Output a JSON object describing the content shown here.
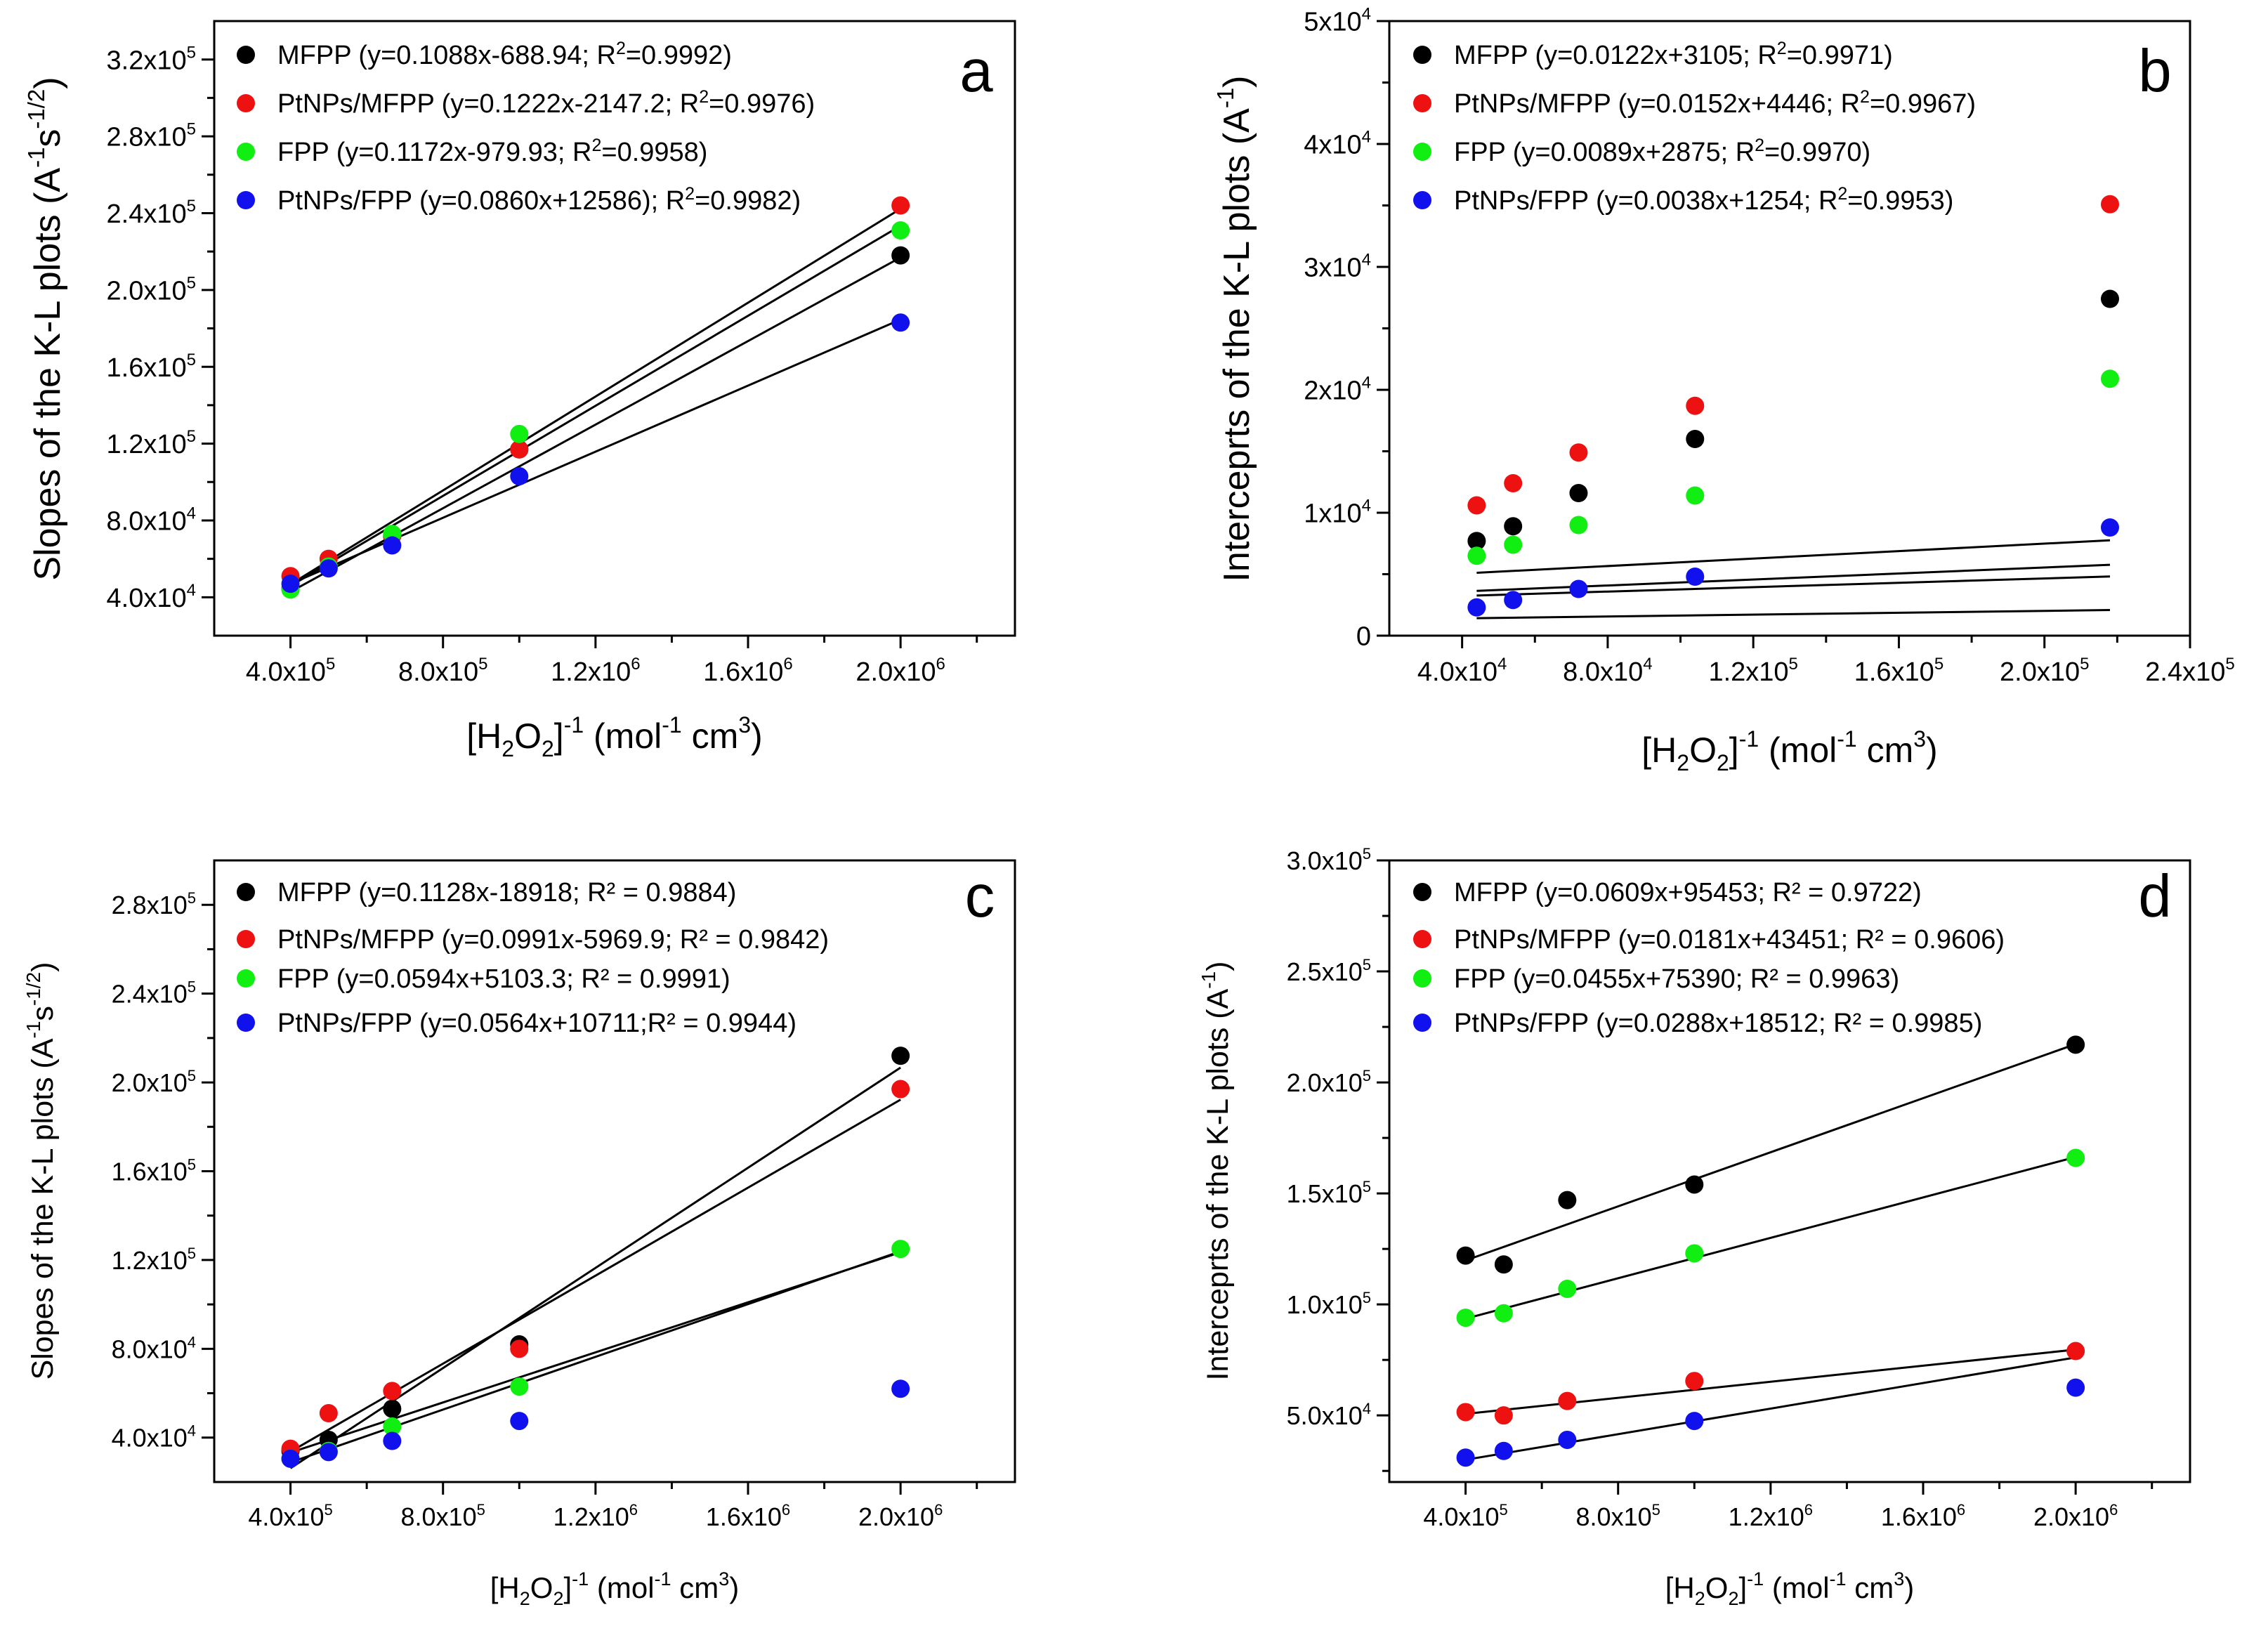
{
  "colors": {
    "MFPP": "#000000",
    "PtNPs/MFPP": "#ee1111",
    "FPP": "#11ee11",
    "PtNPs/FPP": "#1111ee",
    "axis": "#000000"
  },
  "chart_data": [
    {
      "type": "scatter",
      "panel": "a",
      "ylabel": "Slopes of the K-L plots (A^-1 s^-1/2)",
      "xlabel": "[H2O2]^-1 (mol^-1 cm^3)",
      "xlim": [
        200000,
        2300000
      ],
      "ylim": [
        20000,
        340000
      ],
      "xticks": [
        {
          "v": 400000,
          "m": "4.0",
          "e": "5"
        },
        {
          "v": 800000,
          "m": "8.0",
          "e": "5"
        },
        {
          "v": 1200000,
          "m": "1.2",
          "e": "6"
        },
        {
          "v": 1600000,
          "m": "1.6",
          "e": "6"
        },
        {
          "v": 2000000,
          "m": "2.0",
          "e": "6"
        }
      ],
      "yticks": [
        {
          "v": 40000,
          "m": "4.0",
          "e": "4"
        },
        {
          "v": 80000,
          "m": "8.0",
          "e": "4"
        },
        {
          "v": 120000,
          "m": "1.2",
          "e": "5"
        },
        {
          "v": 160000,
          "m": "1.6",
          "e": "5"
        },
        {
          "v": 200000,
          "m": "2.0",
          "e": "5"
        },
        {
          "v": 240000,
          "m": "2.4",
          "e": "5"
        },
        {
          "v": 280000,
          "m": "2.8",
          "e": "5"
        },
        {
          "v": 320000,
          "m": "3.2",
          "e": "5"
        }
      ],
      "series": [
        {
          "name": "MFPP",
          "legend": "MFPP (y=0.1088x-688.94; R2=0.9992)",
          "x": [
            400000,
            500000,
            666667,
            1000000,
            2000000
          ],
          "y": [
            44500,
            56000,
            72000,
            117000,
            218000
          ],
          "fit": {
            "slope": 0.1088,
            "intercept": -688.94
          }
        },
        {
          "name": "PtNPs/MFPP",
          "legend": "PtNPs/MFPP (y=0.1222x-2147.2; R2=0.9976)",
          "x": [
            400000,
            500000,
            666667,
            1000000,
            2000000
          ],
          "y": [
            51000,
            60000,
            72000,
            117000,
            244000
          ],
          "fit": {
            "slope": 0.1222,
            "intercept": -2147.2
          }
        },
        {
          "name": "FPP",
          "legend": "FPP (y=0.1172x-979.93; R2=0.9958)",
          "x": [
            400000,
            500000,
            666667,
            1000000,
            2000000
          ],
          "y": [
            44000,
            56000,
            73000,
            125000,
            231000
          ],
          "fit": {
            "slope": 0.1172,
            "intercept": -979.93
          }
        },
        {
          "name": "PtNPs/FPP",
          "legend": "PtNPs/FPP (y=0.0860x+12586); R2=0.9982)",
          "x": [
            400000,
            500000,
            666667,
            1000000,
            2000000
          ],
          "y": [
            47000,
            55000,
            67000,
            103000,
            183000
          ],
          "fit": {
            "slope": 0.086,
            "intercept": 12586
          }
        }
      ]
    },
    {
      "type": "scatter",
      "panel": "b",
      "ylabel": "Interceprts of the K-L plots (A^-1)",
      "xlabel": "[H2O2]^-1 (mol^-1 cm^3)",
      "xlim": [
        20000,
        240000
      ],
      "ylim": [
        0,
        50000
      ],
      "xticks": [
        {
          "v": 40000,
          "m": "4.0",
          "e": "4"
        },
        {
          "v": 80000,
          "m": "8.0",
          "e": "4"
        },
        {
          "v": 120000,
          "m": "1.2",
          "e": "5"
        },
        {
          "v": 160000,
          "m": "1.6",
          "e": "5"
        },
        {
          "v": 200000,
          "m": "2.0",
          "e": "5"
        },
        {
          "v": 240000,
          "m": "2.4",
          "e": "5"
        }
      ],
      "yticks": [
        {
          "v": 0,
          "m": "0",
          "e": ""
        },
        {
          "v": 10000,
          "m": "1",
          "e": "4"
        },
        {
          "v": 20000,
          "m": "2",
          "e": "4"
        },
        {
          "v": 30000,
          "m": "3",
          "e": "4"
        },
        {
          "v": 40000,
          "m": "4",
          "e": "4"
        },
        {
          "v": 50000,
          "m": "5",
          "e": "4"
        }
      ],
      "series": [
        {
          "name": "MFPP",
          "legend": "MFPP (y=0.0122x+3105; R2=0.9971)",
          "x": [
            44000,
            54000,
            72000,
            104000,
            218000
          ],
          "y": [
            7700,
            8900,
            11600,
            16000,
            27400
          ],
          "fit": {
            "slope": 0.0122,
            "intercept": 3105
          }
        },
        {
          "name": "PtNPs/MFPP",
          "legend": "PtNPs/MFPP (y=0.0152x+4446; R2=0.9967)",
          "x": [
            44000,
            54000,
            72000,
            104000,
            218000
          ],
          "y": [
            10600,
            12400,
            14900,
            18700,
            35100
          ],
          "fit": {
            "slope": 0.0152,
            "intercept": 4446
          }
        },
        {
          "name": "FPP",
          "legend": "FPP (y=0.0089x+2875; R2=0.9970)",
          "x": [
            44000,
            54000,
            72000,
            104000,
            218000
          ],
          "y": [
            6500,
            7400,
            9000,
            11400,
            20900
          ],
          "fit": {
            "slope": 0.0089,
            "intercept": 2875
          }
        },
        {
          "name": "PtNPs/FPP",
          "legend": "PtNPs/FPP (y=0.0038x+1254; R2=0.9953)",
          "x": [
            44000,
            54000,
            72000,
            104000,
            218000
          ],
          "y": [
            2300,
            2900,
            3800,
            4800,
            8800
          ],
          "fit": {
            "slope": 0.0038,
            "intercept": 1254
          }
        }
      ]
    },
    {
      "type": "scatter",
      "panel": "c",
      "ylabel": "Slopes of the K-L plots (A^-1 s^-1/2)",
      "xlabel": "[H2O2]^-1 (mol^-1 cm^3)",
      "xlim": [
        200000,
        2300000
      ],
      "ylim": [
        20000,
        300000
      ],
      "xticks": [
        {
          "v": 400000,
          "m": "4.0",
          "e": "5"
        },
        {
          "v": 800000,
          "m": "8.0",
          "e": "5"
        },
        {
          "v": 1200000,
          "m": "1.2",
          "e": "6"
        },
        {
          "v": 1600000,
          "m": "1.6",
          "e": "6"
        },
        {
          "v": 2000000,
          "m": "2.0",
          "e": "6"
        }
      ],
      "yticks": [
        {
          "v": 40000,
          "m": "4.0",
          "e": "4"
        },
        {
          "v": 80000,
          "m": "8.0",
          "e": "4"
        },
        {
          "v": 120000,
          "m": "1.2",
          "e": "5"
        },
        {
          "v": 160000,
          "m": "1.6",
          "e": "5"
        },
        {
          "v": 200000,
          "m": "2.0",
          "e": "5"
        },
        {
          "v": 240000,
          "m": "2.4",
          "e": "5"
        },
        {
          "v": 280000,
          "m": "2.8",
          "e": "5"
        }
      ],
      "series": [
        {
          "name": "MFPP",
          "legend": "MFPP (y=0.1128x-18918; R² = 0.9884)",
          "x": [
            400000,
            500000,
            666667,
            1000000,
            2000000
          ],
          "y": [
            34000,
            39000,
            53000,
            82000,
            212000
          ],
          "fit": {
            "slope": 0.1128,
            "intercept": -18918
          }
        },
        {
          "name": "PtNPs/MFPP",
          "legend": "PtNPs/MFPP (y=0.0991x-5969.9; R² = 0.9842)",
          "x": [
            400000,
            500000,
            666667,
            1000000,
            2000000
          ],
          "y": [
            35000,
            51000,
            61000,
            80000,
            197000
          ],
          "fit": {
            "slope": 0.0991,
            "intercept": -5969.9
          }
        },
        {
          "name": "FPP",
          "legend": "FPP (y=0.0594x+5103.3; R² = 0.9991)",
          "x": [
            400000,
            500000,
            666667,
            1000000,
            2000000
          ],
          "y": [
            30500,
            34000,
            45000,
            63000,
            125000
          ],
          "fit": {
            "slope": 0.0594,
            "intercept": 5103.3
          }
        },
        {
          "name": "PtNPs/FPP",
          "legend": "PtNPs/FPP (y=0.0564x+10711;R² = 0.9944)",
          "x": [
            400000,
            500000,
            666667,
            1000000,
            2000000
          ],
          "y": [
            30500,
            33500,
            38500,
            47500,
            62000
          ],
          "fit": {
            "slope": 0.0564,
            "intercept": 10711
          }
        }
      ]
    },
    {
      "type": "scatter",
      "panel": "d",
      "ylabel": "Interceprts of the K-L plots (A^-1)",
      "xlabel": "[H2O2]^-1 (mol^-1 cm^3)",
      "xlim": [
        200000,
        2300000
      ],
      "ylim": [
        20000,
        300000
      ],
      "xticks": [
        {
          "v": 400000,
          "m": "4.0",
          "e": "5"
        },
        {
          "v": 800000,
          "m": "8.0",
          "e": "5"
        },
        {
          "v": 1200000,
          "m": "1.2",
          "e": "6"
        },
        {
          "v": 1600000,
          "m": "1.6",
          "e": "6"
        },
        {
          "v": 2000000,
          "m": "2.0",
          "e": "6"
        }
      ],
      "yticks": [
        {
          "v": 50000,
          "m": "5.0",
          "e": "4"
        },
        {
          "v": 100000,
          "m": "1.0",
          "e": "5"
        },
        {
          "v": 150000,
          "m": "1.5",
          "e": "5"
        },
        {
          "v": 200000,
          "m": "2.0",
          "e": "5"
        },
        {
          "v": 250000,
          "m": "2.5",
          "e": "5"
        },
        {
          "v": 300000,
          "m": "3.0",
          "e": "5"
        }
      ],
      "series": [
        {
          "name": "MFPP",
          "legend": "MFPP (y=0.0609x+95453; R² = 0.9722)",
          "x": [
            400000,
            500000,
            666667,
            1000000,
            2000000
          ],
          "y": [
            122000,
            118000,
            147000,
            154000,
            217000
          ],
          "fit": {
            "slope": 0.0609,
            "intercept": 95453
          }
        },
        {
          "name": "PtNPs/MFPP",
          "legend": "PtNPs/MFPP (y=0.0181x+43451; R² = 0.9606)",
          "x": [
            400000,
            500000,
            666667,
            1000000,
            2000000
          ],
          "y": [
            51500,
            50000,
            56500,
            65500,
            79000
          ],
          "fit": {
            "slope": 0.0181,
            "intercept": 43451
          }
        },
        {
          "name": "FPP",
          "legend": "FPP (y=0.0455x+75390; R² = 0.9963)",
          "x": [
            400000,
            500000,
            666667,
            1000000,
            2000000
          ],
          "y": [
            94000,
            96000,
            107000,
            123000,
            166000
          ],
          "fit": {
            "slope": 0.0455,
            "intercept": 75390
          }
        },
        {
          "name": "PtNPs/FPP",
          "legend": "PtNPs/FPP (y=0.0288x+18512; R² = 0.9985)",
          "x": [
            400000,
            500000,
            666667,
            1000000,
            2000000
          ],
          "y": [
            31000,
            34000,
            39000,
            47500,
            62500
          ],
          "fit": {
            "slope": 0.0288,
            "intercept": 18512
          }
        }
      ]
    }
  ]
}
